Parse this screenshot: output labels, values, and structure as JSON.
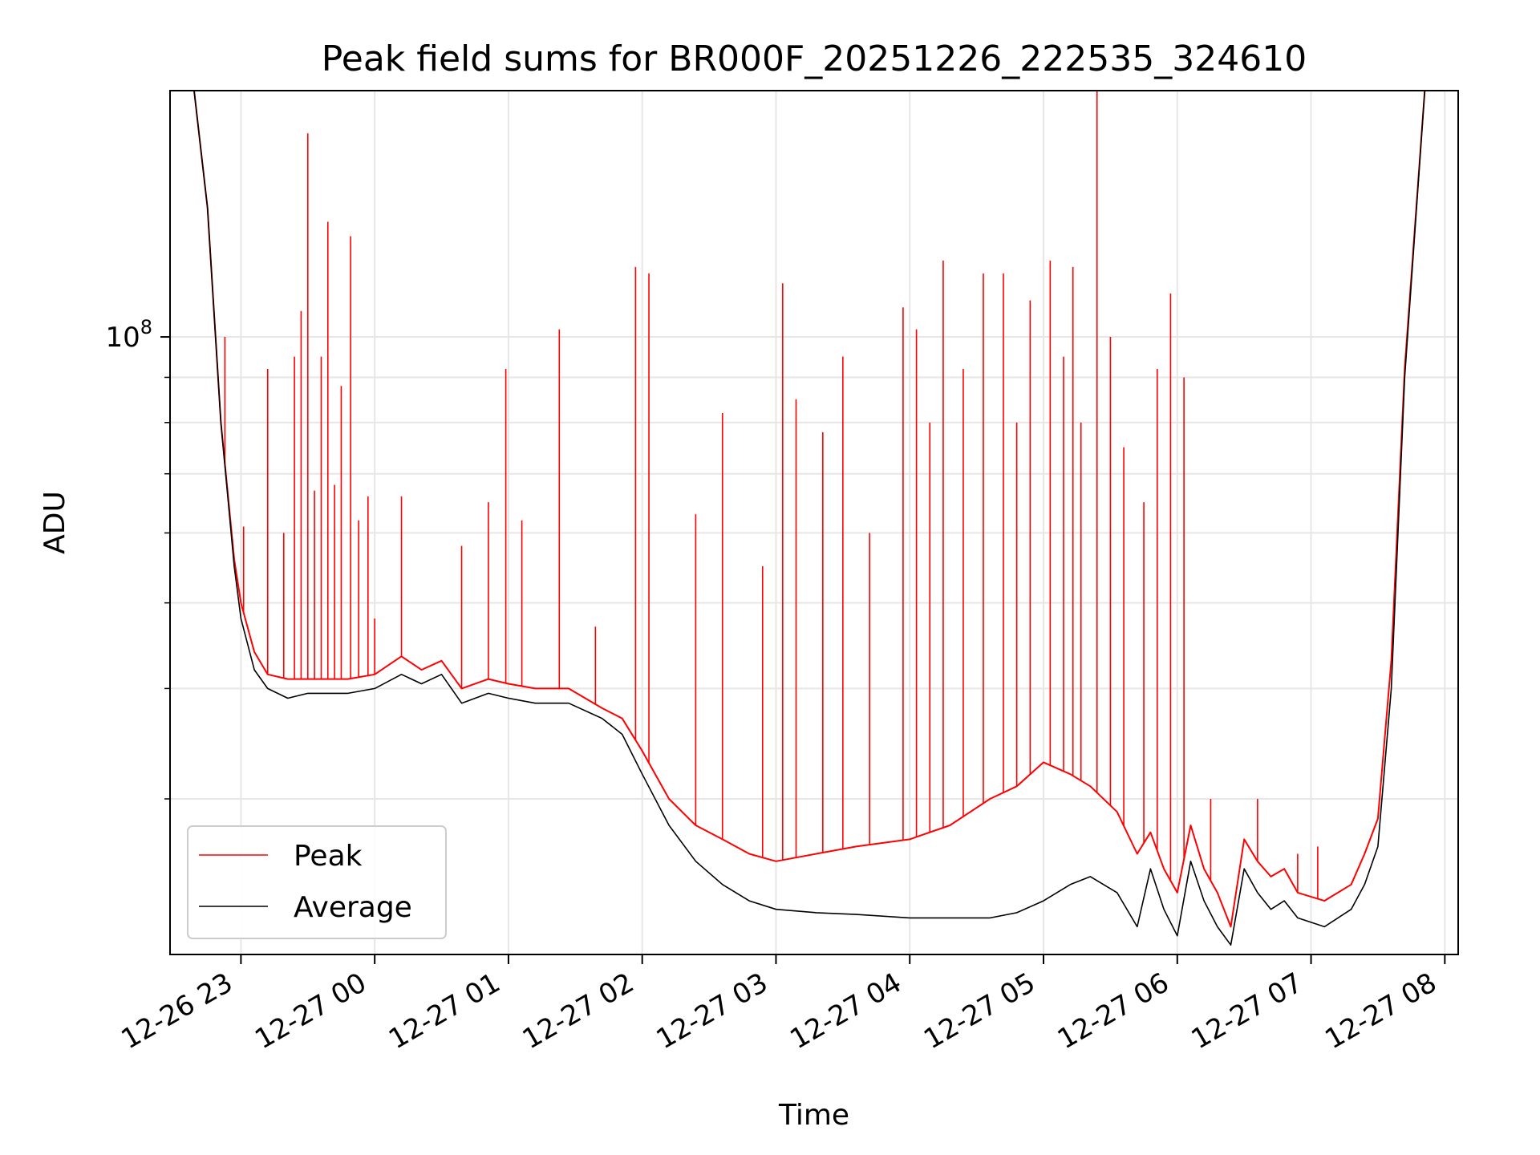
{
  "chart_data": {
    "type": "line",
    "title": "Peak field sums for BR000F_20251226_222535_324610",
    "xlabel": "Time",
    "ylabel": "ADU",
    "yscale": "log",
    "ylim": [
      20000000,
      190000000
    ],
    "xlim_hours_from_2300": [
      -0.53,
      9.1
    ],
    "grid": true,
    "x_ticks": [
      {
        "label": "12-26 23",
        "hours_from_2300": 0
      },
      {
        "label": "12-27 00",
        "hours_from_2300": 1
      },
      {
        "label": "12-27 01",
        "hours_from_2300": 2
      },
      {
        "label": "12-27 02",
        "hours_from_2300": 3
      },
      {
        "label": "12-27 03",
        "hours_from_2300": 4
      },
      {
        "label": "12-27 04",
        "hours_from_2300": 5
      },
      {
        "label": "12-27 05",
        "hours_from_2300": 6
      },
      {
        "label": "12-27 06",
        "hours_from_2300": 7
      },
      {
        "label": "12-27 07",
        "hours_from_2300": 8
      },
      {
        "label": "12-27 08",
        "hours_from_2300": 9
      }
    ],
    "y_major_ticks": [
      {
        "label": "10",
        "sup": "8",
        "value": 100000000
      }
    ],
    "y_minor_ticks": [
      20000000,
      30000000,
      40000000,
      50000000,
      60000000,
      70000000,
      80000000,
      90000000,
      200000000
    ],
    "legend": {
      "position": "lower-left",
      "entries": [
        {
          "label": "Peak",
          "color": "#ff0000"
        },
        {
          "label": "Average",
          "color": "#000000"
        }
      ]
    },
    "series": [
      {
        "name": "Average",
        "color": "#000000",
        "x": [
          -0.53,
          -0.35,
          -0.25,
          -0.15,
          -0.05,
          0.0,
          0.1,
          0.2,
          0.35,
          0.5,
          0.8,
          1.0,
          1.2,
          1.35,
          1.5,
          1.65,
          1.85,
          2.0,
          2.2,
          2.45,
          2.7,
          2.85,
          3.0,
          3.2,
          3.4,
          3.6,
          3.8,
          4.0,
          4.3,
          4.6,
          5.0,
          5.3,
          5.6,
          5.8,
          6.0,
          6.2,
          6.35,
          6.55,
          6.7,
          6.8,
          6.9,
          7.0,
          7.1,
          7.2,
          7.3,
          7.4,
          7.5,
          7.6,
          7.7,
          7.8,
          7.9,
          8.1,
          8.3,
          8.4,
          8.5,
          8.6,
          8.7,
          8.85
        ],
        "values": [
          200000000,
          200000000,
          140000000,
          80000000,
          55000000,
          48000000,
          42000000,
          40000000,
          39000000,
          39500000,
          39500000,
          40000000,
          41500000,
          40500000,
          41500000,
          38500000,
          39500000,
          39000000,
          38500000,
          38500000,
          37000000,
          35500000,
          32000000,
          28000000,
          25500000,
          24000000,
          23000000,
          22500000,
          22300000,
          22200000,
          22000000,
          22000000,
          22000000,
          22300000,
          23000000,
          24000000,
          24500000,
          23500000,
          21500000,
          25000000,
          22500000,
          21000000,
          25500000,
          23000000,
          21500000,
          20500000,
          25000000,
          23500000,
          22500000,
          23000000,
          22000000,
          21500000,
          22500000,
          24000000,
          26500000,
          40000000,
          90000000,
          190000000
        ]
      },
      {
        "name": "Peak",
        "color": "#ff0000",
        "x": [
          -0.53,
          -0.35,
          -0.25,
          -0.15,
          -0.05,
          0.0,
          0.1,
          0.2,
          0.35,
          0.5,
          0.8,
          1.0,
          1.2,
          1.35,
          1.5,
          1.65,
          1.85,
          2.0,
          2.2,
          2.45,
          2.7,
          2.85,
          3.0,
          3.2,
          3.4,
          3.6,
          3.8,
          4.0,
          4.3,
          4.6,
          5.0,
          5.3,
          5.6,
          5.8,
          6.0,
          6.2,
          6.35,
          6.55,
          6.7,
          6.8,
          6.9,
          7.0,
          7.1,
          7.2,
          7.3,
          7.4,
          7.5,
          7.6,
          7.7,
          7.8,
          7.9,
          8.1,
          8.3,
          8.4,
          8.5,
          8.6,
          8.7,
          8.85
        ],
        "values": [
          200000000,
          200000000,
          140000000,
          80000000,
          56000000,
          50000000,
          44000000,
          41500000,
          41000000,
          41000000,
          41000000,
          41500000,
          43500000,
          42000000,
          43000000,
          40000000,
          41000000,
          40500000,
          40000000,
          40000000,
          38000000,
          37000000,
          34000000,
          30000000,
          28000000,
          27000000,
          26000000,
          25500000,
          26000000,
          26500000,
          27000000,
          28000000,
          30000000,
          31000000,
          33000000,
          32000000,
          31000000,
          29000000,
          26000000,
          27500000,
          25000000,
          23500000,
          28000000,
          25000000,
          23500000,
          21500000,
          27000000,
          25500000,
          24500000,
          25000000,
          23500000,
          23000000,
          24000000,
          26000000,
          28500000,
          43000000,
          92000000,
          190000000
        ],
        "spikes": [
          [
            -0.12,
            100000000
          ],
          [
            0.02,
            61000000
          ],
          [
            0.2,
            92000000
          ],
          [
            0.32,
            60000000
          ],
          [
            0.4,
            95000000
          ],
          [
            0.45,
            107000000
          ],
          [
            0.5,
            170000000
          ],
          [
            0.55,
            67000000
          ],
          [
            0.6,
            95000000
          ],
          [
            0.65,
            135000000
          ],
          [
            0.7,
            68000000
          ],
          [
            0.75,
            88000000
          ],
          [
            0.82,
            130000000
          ],
          [
            0.88,
            62000000
          ],
          [
            0.95,
            66000000
          ],
          [
            1.0,
            48000000
          ],
          [
            1.2,
            66000000
          ],
          [
            1.65,
            58000000
          ],
          [
            1.85,
            65000000
          ],
          [
            1.98,
            92000000
          ],
          [
            2.1,
            62000000
          ],
          [
            2.38,
            102000000
          ],
          [
            2.65,
            47000000
          ],
          [
            2.95,
            120000000
          ],
          [
            3.05,
            118000000
          ],
          [
            3.4,
            63000000
          ],
          [
            3.6,
            82000000
          ],
          [
            3.9,
            55000000
          ],
          [
            4.05,
            115000000
          ],
          [
            4.15,
            85000000
          ],
          [
            4.35,
            78000000
          ],
          [
            4.5,
            95000000
          ],
          [
            4.7,
            60000000
          ],
          [
            4.95,
            108000000
          ],
          [
            5.05,
            102000000
          ],
          [
            5.15,
            80000000
          ],
          [
            5.25,
            122000000
          ],
          [
            5.4,
            92000000
          ],
          [
            5.55,
            118000000
          ],
          [
            5.7,
            118000000
          ],
          [
            5.8,
            80000000
          ],
          [
            5.9,
            110000000
          ],
          [
            6.05,
            122000000
          ],
          [
            6.15,
            95000000
          ],
          [
            6.22,
            120000000
          ],
          [
            6.28,
            80000000
          ],
          [
            6.4,
            190000000
          ],
          [
            6.5,
            100000000
          ],
          [
            6.6,
            75000000
          ],
          [
            6.75,
            65000000
          ],
          [
            6.85,
            92000000
          ],
          [
            6.95,
            112000000
          ],
          [
            7.05,
            90000000
          ],
          [
            7.25,
            30000000
          ],
          [
            7.6,
            30000000
          ],
          [
            7.9,
            26000000
          ],
          [
            8.05,
            26500000
          ]
        ]
      }
    ]
  }
}
